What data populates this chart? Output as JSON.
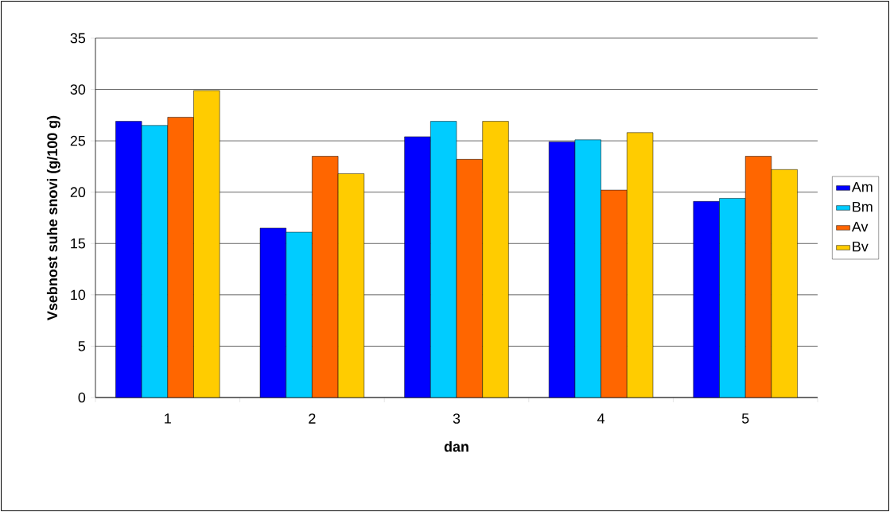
{
  "chart_data": {
    "type": "bar",
    "xlabel": "dan",
    "ylabel": "Vsebnost suhe snovi (g/100 g)",
    "categories": [
      "1",
      "2",
      "3",
      "4",
      "5"
    ],
    "series": [
      {
        "name": "Am",
        "color": "#0000ff",
        "values": [
          26.9,
          16.5,
          25.4,
          24.9,
          19.1
        ]
      },
      {
        "name": "Bm",
        "color": "#00ccff",
        "values": [
          26.5,
          16.1,
          26.9,
          25.1,
          19.4
        ]
      },
      {
        "name": "Av",
        "color": "#ff6600",
        "values": [
          27.3,
          23.5,
          23.2,
          20.2,
          23.5
        ]
      },
      {
        "name": "Bv",
        "color": "#ffcc00",
        "values": [
          29.9,
          21.8,
          26.9,
          25.8,
          22.2
        ]
      }
    ],
    "ylim": [
      0,
      35
    ],
    "yticks": [
      0,
      5,
      10,
      15,
      20,
      25,
      30,
      35
    ],
    "grid": "y",
    "legend": "right"
  }
}
